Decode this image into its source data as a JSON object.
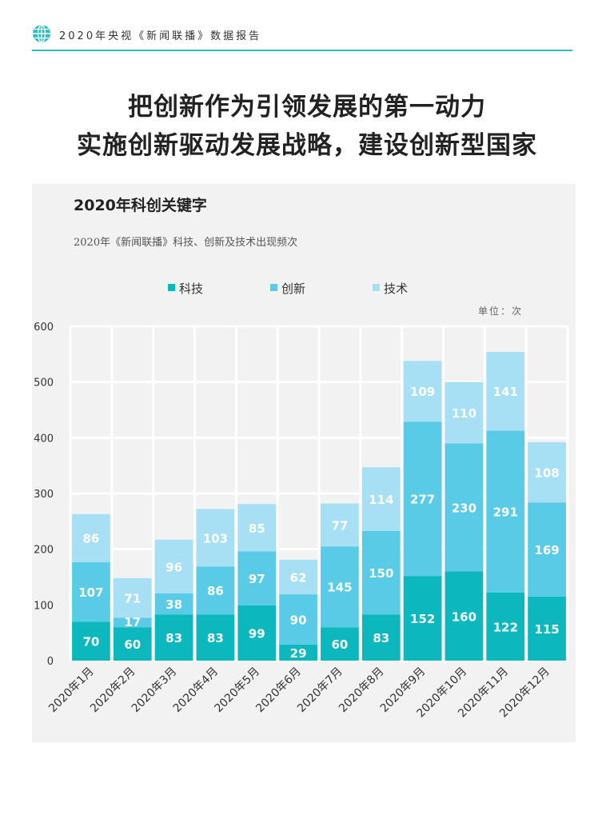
{
  "header": {
    "title": "2020年央视《新闻联播》数据报告",
    "icon": "globe-icon",
    "accent": "#2bbdc2"
  },
  "headline": {
    "line1": "把创新作为引领发展的第一动力",
    "line2": "实施创新驱动发展战略，建设创新型国家"
  },
  "chart_data": {
    "type": "bar",
    "stacked": true,
    "title": "2020年科创关键字",
    "subtitle": "2020年《新闻联播》科技、创新及技术出现频次",
    "unit": "单位：次",
    "categories": [
      "2020年1月",
      "2020年2月",
      "2020年3月",
      "2020年4月",
      "2020年5月",
      "2020年6月",
      "2020年7月",
      "2020年8月",
      "2020年9月",
      "2020年10月",
      "2020年11月",
      "2020年12月"
    ],
    "series": [
      {
        "name": "科技",
        "color": "#0cb8bd",
        "values": [
          70,
          60,
          83,
          83,
          99,
          29,
          60,
          83,
          152,
          160,
          122,
          115
        ]
      },
      {
        "name": "创新",
        "color": "#59cbe6",
        "values": [
          107,
          17,
          38,
          86,
          97,
          90,
          145,
          150,
          277,
          230,
          291,
          169
        ]
      },
      {
        "name": "技术",
        "color": "#a7dff4",
        "values": [
          86,
          71,
          96,
          103,
          85,
          62,
          77,
          114,
          109,
          110,
          141,
          108
        ]
      }
    ],
    "yticks": [
      0,
      100,
      200,
      300,
      400,
      500,
      600
    ],
    "ylim": [
      0,
      600
    ],
    "grid": true,
    "legend": "top"
  }
}
